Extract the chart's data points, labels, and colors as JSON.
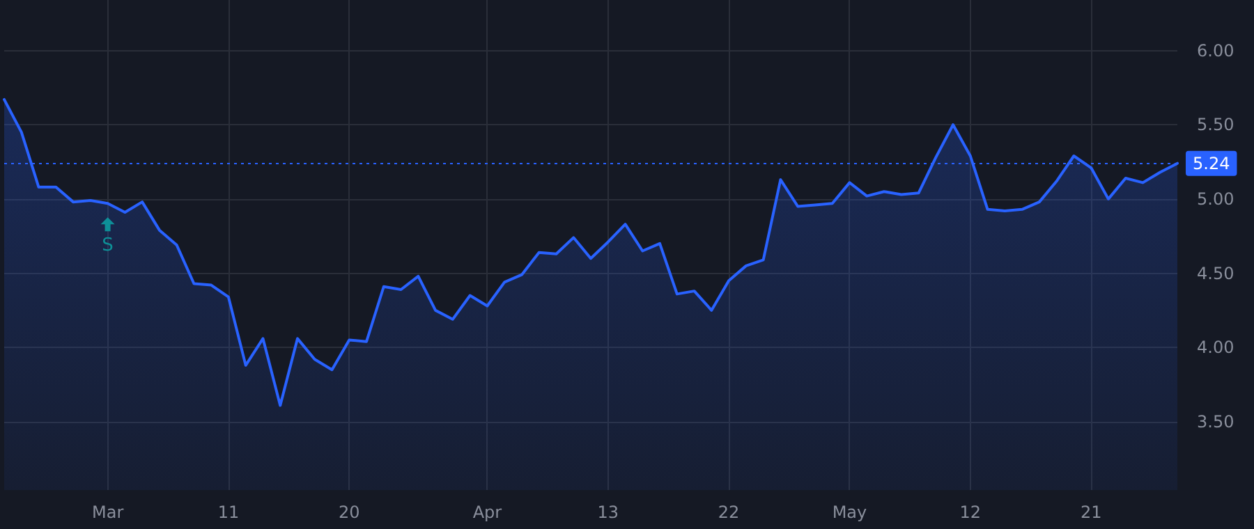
{
  "chart_data": {
    "type": "area",
    "categories": [
      null,
      null,
      null,
      null,
      null,
      null,
      "Mar",
      null,
      null,
      null,
      null,
      null,
      null,
      "11",
      null,
      null,
      null,
      null,
      null,
      null,
      "20",
      null,
      null,
      null,
      null,
      null,
      null,
      null,
      "Apr",
      null,
      null,
      null,
      null,
      null,
      null,
      "13",
      null,
      null,
      null,
      null,
      null,
      null,
      "22",
      null,
      null,
      null,
      null,
      null,
      null,
      "May",
      null,
      null,
      null,
      null,
      null,
      null,
      "12",
      null,
      null,
      null,
      null,
      null,
      null,
      "21",
      null,
      null,
      null,
      null,
      null
    ],
    "series": [
      {
        "color": "#2962ff",
        "values": [
          5.67,
          5.45,
          5.08,
          5.08,
          4.98,
          4.99,
          4.97,
          4.91,
          4.98,
          4.79,
          4.69,
          4.43,
          4.42,
          4.34,
          3.88,
          4.06,
          3.61,
          4.06,
          3.92,
          3.85,
          4.05,
          4.04,
          4.41,
          4.39,
          4.48,
          4.25,
          4.19,
          4.35,
          4.28,
          4.44,
          4.49,
          4.64,
          4.63,
          4.74,
          4.6,
          4.71,
          4.83,
          4.65,
          4.7,
          4.36,
          4.38,
          4.25,
          4.45,
          4.55,
          4.59,
          5.13,
          4.95,
          4.96,
          4.97,
          5.11,
          5.02,
          5.05,
          5.03,
          5.04,
          5.28,
          5.5,
          5.29,
          4.93,
          4.92,
          4.93,
          4.98,
          5.12,
          5.29,
          5.21,
          5.0,
          5.14,
          5.11,
          5.18,
          5.24
        ]
      }
    ],
    "ylim": [
      3.04,
      6.34
    ],
    "yticks": [
      {
        "value": 3.5,
        "label": "3.50"
      },
      {
        "value": 4,
        "label": "4.00"
      },
      {
        "value": 4.5,
        "label": "4.50"
      },
      {
        "value": 5,
        "label": "5.00"
      },
      {
        "value": 5.5,
        "label": "5.50"
      },
      {
        "value": 6,
        "label": "6.00"
      }
    ],
    "ref_lines": [
      {
        "axis": "y",
        "value": 5.24,
        "label": "5.24",
        "color": "#2962ff",
        "line_style": "dotted"
      }
    ],
    "annotations": [
      {
        "text": "S",
        "x": "Mar",
        "y": 4.97
      }
    ],
    "grid": true,
    "marker": "none",
    "line_style": "solid"
  }
}
